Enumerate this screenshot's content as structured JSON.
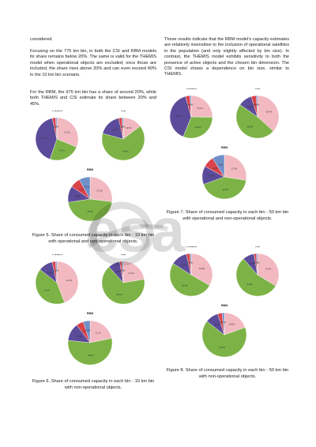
{
  "left_column": {
    "p0": "considered.",
    "p1": "Focusing on the 775 km bin, in both the CSI and RBM models its share remains below 20%. The same is valid for the THEMIS model when operational objects are excluded; once those are included, the share rises above 20% and can even exceed 40% in the 10 km bin scenario.",
    "p2": "For the RBM, the 975 km bin has a share of around 20%, while both THEMIS and CSI estimate its share between 20% and 45%."
  },
  "right_column": {
    "p1": "These results indicate that the RBM model’s capacity estimates are relatively insensitive to the inclusion of operational satellites in the population (and only slightly affected by bin size). In contrast, the THEMIS model exhibits sensitivity to both the presence of active objects and the chosen bin dimension. The CSI model shows a dependence on bin size, similar to THEMIS."
  },
  "captions": {
    "fig5": "Figure 5. Share of consumed capacity in each bin - 10 km bin with operational and non-operational objects.",
    "fig6": "Figure 6. Share of consumed capacity in each bin - 10 km bin with non-operational objects.",
    "fig7": "Figure 7. Share of consumed capacity in each bin - 50 km bin with operational and non-operational objects.",
    "fig8": "Figure 8. Share of consumed capacity in each bin - 50 km bin with non-operational objects."
  },
  "watermark": {
    "text": "esa",
    "color": "#000000"
  },
  "colors": {
    "pink": "#f2b9c1",
    "green": "#7db346",
    "purple": "#5b4b9a",
    "red": "#d9434a",
    "blue": "#6f8fc9",
    "darkgreen": "#2f5f2c"
  },
  "chart_data": [
    {
      "figure": "fig5",
      "title": "THEMIS",
      "type": "pie",
      "values": [
        31.2,
        24.1,
        41.2,
        2.5,
        1.0
      ],
      "labels": [
        "",
        "",
        "",
        "",
        ""
      ]
    },
    {
      "figure": "fig5",
      "title": "CSI",
      "type": "pie",
      "values": [
        14.6,
        64.6,
        17.3,
        2.5,
        1.0
      ],
      "labels": [
        "",
        "",
        "",
        "",
        ""
      ]
    },
    {
      "figure": "fig5",
      "title": "RBM",
      "type": "pie",
      "values": [
        27.0,
        45.6,
        11.9,
        7.4,
        8.1
      ],
      "labels": [
        "",
        "",
        "",
        "",
        ""
      ]
    },
    {
      "figure": "fig6",
      "title": "THEMIS",
      "type": "pie",
      "values": [
        44.1,
        41.5,
        10.8,
        2.6,
        1.0
      ],
      "labels": [
        "",
        "",
        "",
        "",
        ""
      ]
    },
    {
      "figure": "fig6",
      "title": "CSI",
      "type": "pie",
      "values": [
        22.4,
        66.0,
        8.9,
        1.7,
        1.0
      ],
      "labels": [
        "",
        "",
        "",
        "",
        ""
      ]
    },
    {
      "figure": "fig6",
      "title": "RBM",
      "type": "pie",
      "values": [
        21.7,
        55.0,
        13.0,
        5.3,
        5.0
      ],
      "labels": [
        "",
        "",
        "",
        "",
        ""
      ]
    },
    {
      "figure": "fig7",
      "title": "THEMIS",
      "type": "pie",
      "values": [
        25.1,
        31.0,
        39.6,
        3.3,
        1.0
      ],
      "labels": [
        "",
        "",
        "",
        "",
        ""
      ]
    },
    {
      "figure": "fig7",
      "title": "CSI",
      "type": "pie",
      "values": [
        36.7,
        48.0,
        10.5,
        3.8,
        1.0
      ],
      "labels": [
        "",
        "",
        "",
        "",
        ""
      ]
    },
    {
      "figure": "fig7",
      "title": "RBM",
      "type": "pie",
      "values": [
        27.5,
        42.0,
        13.5,
        8.0,
        9.0
      ],
      "labels": [
        "",
        "",
        "",
        "",
        ""
      ]
    },
    {
      "figure": "fig8",
      "title": "THEMIS",
      "type": "pie",
      "values": [
        33.3,
        50.6,
        12.4,
        2.7,
        1.0
      ],
      "labels": [
        "",
        "",
        "",
        "",
        ""
      ]
    },
    {
      "figure": "fig8",
      "title": "CSI",
      "type": "pie",
      "values": [
        33.7,
        54.9,
        8.7,
        1.7,
        1.0
      ],
      "labels": [
        "",
        "",
        "",
        "",
        ""
      ]
    },
    {
      "figure": "fig8",
      "title": "RBM",
      "type": "pie",
      "values": [
        19.5,
        66.0,
        9.6,
        3.2,
        1.7
      ],
      "labels": [
        "",
        "",
        "",
        "",
        ""
      ]
    }
  ]
}
